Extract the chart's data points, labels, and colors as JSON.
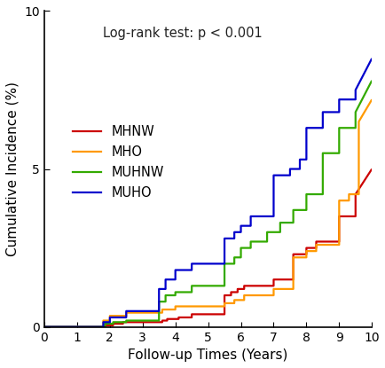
{
  "title_annotation": "Log-rank test: p < 0.001",
  "xlabel": "Follow-up Times (Years)",
  "ylabel": "Cumulative Incidence (%)",
  "ylim": [
    0,
    10
  ],
  "xlim": [
    0,
    10
  ],
  "yticks": [
    0,
    5,
    10
  ],
  "xticks": [
    0,
    1,
    2,
    3,
    4,
    5,
    6,
    7,
    8,
    9,
    10
  ],
  "legend_labels": [
    "MHNW",
    "MHO",
    "MUHNW",
    "MUHO"
  ],
  "colors": {
    "MHNW": "#cc0000",
    "MHO": "#ff9900",
    "MUHNW": "#33aa00",
    "MUHO": "#0000cc"
  },
  "curves": {
    "MHNW": {
      "x": [
        0,
        1.85,
        1.85,
        2.1,
        2.1,
        2.4,
        2.4,
        3.6,
        3.6,
        3.75,
        3.75,
        4.1,
        4.1,
        4.5,
        4.5,
        5.5,
        5.5,
        5.7,
        5.7,
        5.9,
        5.9,
        6.1,
        6.1,
        7.0,
        7.0,
        7.6,
        7.6,
        8.0,
        8.0,
        8.3,
        8.3,
        9.0,
        9.0,
        9.5,
        9.5,
        10.0
      ],
      "y": [
        0,
        0,
        0.05,
        0.05,
        0.1,
        0.1,
        0.15,
        0.15,
        0.2,
        0.2,
        0.25,
        0.25,
        0.3,
        0.3,
        0.4,
        0.4,
        1.0,
        1.0,
        1.1,
        1.1,
        1.2,
        1.2,
        1.3,
        1.3,
        1.5,
        1.5,
        2.3,
        2.3,
        2.5,
        2.5,
        2.7,
        2.7,
        3.5,
        3.5,
        4.2,
        5.0
      ]
    },
    "MHO": {
      "x": [
        0,
        1.8,
        1.8,
        2.0,
        2.0,
        2.5,
        2.5,
        3.6,
        3.6,
        4.0,
        4.0,
        5.5,
        5.5,
        5.8,
        5.8,
        6.1,
        6.1,
        7.0,
        7.0,
        7.6,
        7.6,
        8.0,
        8.0,
        8.3,
        8.3,
        9.0,
        9.0,
        9.3,
        9.3,
        9.6,
        9.6,
        10.0
      ],
      "y": [
        0,
        0,
        0.2,
        0.2,
        0.35,
        0.35,
        0.45,
        0.45,
        0.55,
        0.55,
        0.65,
        0.65,
        0.75,
        0.75,
        0.85,
        0.85,
        1.0,
        1.0,
        1.2,
        1.2,
        2.2,
        2.2,
        2.4,
        2.4,
        2.6,
        2.6,
        4.0,
        4.0,
        4.2,
        4.2,
        6.5,
        7.2
      ]
    },
    "MUHNW": {
      "x": [
        0,
        1.85,
        1.85,
        2.1,
        2.1,
        2.5,
        2.5,
        3.5,
        3.5,
        3.7,
        3.7,
        4.0,
        4.0,
        4.5,
        4.5,
        5.5,
        5.5,
        5.8,
        5.8,
        6.0,
        6.0,
        6.3,
        6.3,
        6.8,
        6.8,
        7.2,
        7.2,
        7.6,
        7.6,
        8.0,
        8.0,
        8.5,
        8.5,
        9.0,
        9.0,
        9.5,
        9.5,
        10.0
      ],
      "y": [
        0,
        0,
        0.1,
        0.1,
        0.15,
        0.15,
        0.2,
        0.2,
        0.8,
        0.8,
        1.0,
        1.0,
        1.1,
        1.1,
        1.3,
        1.3,
        2.0,
        2.0,
        2.2,
        2.2,
        2.5,
        2.5,
        2.7,
        2.7,
        3.0,
        3.0,
        3.3,
        3.3,
        3.7,
        3.7,
        4.2,
        4.2,
        5.5,
        5.5,
        6.3,
        6.3,
        6.8,
        7.8
      ]
    },
    "MUHO": {
      "x": [
        0,
        1.8,
        1.8,
        2.0,
        2.0,
        2.5,
        2.5,
        3.5,
        3.5,
        3.7,
        3.7,
        4.0,
        4.0,
        4.5,
        4.5,
        5.5,
        5.5,
        5.8,
        5.8,
        6.0,
        6.0,
        6.3,
        6.3,
        7.0,
        7.0,
        7.5,
        7.5,
        7.8,
        7.8,
        8.0,
        8.0,
        8.5,
        8.5,
        9.0,
        9.0,
        9.5,
        9.5,
        10.0
      ],
      "y": [
        0,
        0,
        0.15,
        0.15,
        0.3,
        0.3,
        0.5,
        0.5,
        1.2,
        1.2,
        1.5,
        1.5,
        1.8,
        1.8,
        2.0,
        2.0,
        2.8,
        2.8,
        3.0,
        3.0,
        3.2,
        3.2,
        3.5,
        3.5,
        4.8,
        4.8,
        5.0,
        5.0,
        5.3,
        5.3,
        6.3,
        6.3,
        6.8,
        6.8,
        7.2,
        7.2,
        7.5,
        8.5
      ]
    }
  },
  "background_color": "#ffffff",
  "linewidth": 1.6
}
